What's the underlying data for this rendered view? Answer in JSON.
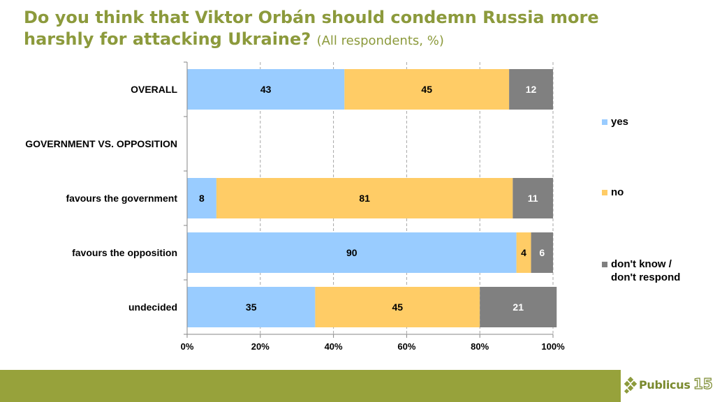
{
  "title": {
    "main": "Do you think that Viktor Orbán should condemn Russia more harshly for attacking Ukraine?",
    "subtitle": "(All respondents, %)"
  },
  "chart_data": {
    "type": "bar",
    "orientation": "horizontal",
    "stacked": "percent",
    "categories": [
      "OVERALL",
      "GOVERNMENT VS. OPPOSITION",
      "favours the government",
      "favours the opposition",
      "undecided"
    ],
    "series": [
      {
        "name": "yes",
        "color": "#99ccff",
        "values": [
          43,
          null,
          8,
          90,
          35
        ]
      },
      {
        "name": "no",
        "color": "#ffcc66",
        "values": [
          45,
          null,
          81,
          4,
          45
        ]
      },
      {
        "name": "don't know / don't respond",
        "color": "#808080",
        "values": [
          12,
          null,
          11,
          6,
          21
        ]
      }
    ],
    "xticks": [
      "0%",
      "20%",
      "40%",
      "60%",
      "80%",
      "100%"
    ],
    "xlim": [
      0,
      100
    ],
    "grid": "vertical dashed",
    "legend_position": "right"
  },
  "legend": {
    "items": [
      {
        "label": "yes",
        "color": "#99ccff"
      },
      {
        "label": "no",
        "color": "#ffcc66"
      },
      {
        "label": "don't know /\ndon't respond",
        "color": "#808080"
      }
    ]
  },
  "footer": {
    "color": "#97a23b"
  },
  "logo": {
    "text": "Publicus",
    "number": "15",
    "icon": "publicus-diamond-logo"
  }
}
